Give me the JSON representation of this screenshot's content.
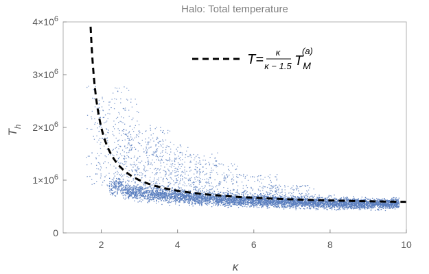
{
  "chart_data": {
    "type": "scatter",
    "title": "Halo: Total temperature",
    "xlabel": "κ",
    "ylabel_main": "T",
    "ylabel_sub": "h",
    "xlim": [
      1,
      10
    ],
    "ylim": [
      0,
      4000000
    ],
    "x_ticks": [
      {
        "value": 2,
        "label": "2"
      },
      {
        "value": 4,
        "label": "4"
      },
      {
        "value": 6,
        "label": "6"
      },
      {
        "value": 8,
        "label": "8"
      },
      {
        "value": 10,
        "label": "10"
      }
    ],
    "y_ticks": [
      {
        "value": 0,
        "label_base": "0",
        "label_exp": ""
      },
      {
        "value": 1000000,
        "label_base": "1×10",
        "label_exp": "6"
      },
      {
        "value": 2000000,
        "label_base": "2×10",
        "label_exp": "6"
      },
      {
        "value": 3000000,
        "label_base": "3×10",
        "label_exp": "6"
      },
      {
        "value": 4000000,
        "label_base": "4×10",
        "label_exp": "6"
      }
    ],
    "scatter_color": "#5b7fbf",
    "curve": {
      "label_lhs": "T=",
      "label_num": "κ",
      "label_den": "κ − 1.5",
      "label_main": "T",
      "label_sub": "M",
      "label_sup": "(a)",
      "style": "dashed",
      "color": "#000000",
      "k0": 1.5,
      "TM": 500000
    },
    "cloud": {
      "x_range": [
        2.2,
        9.8
      ],
      "points": [
        [
          2.5,
          900000
        ],
        [
          2.6,
          800000
        ],
        [
          2.8,
          780000
        ],
        [
          3.0,
          760000
        ],
        [
          3.5,
          720000
        ],
        [
          4.0,
          700000
        ],
        [
          5.0,
          650000
        ],
        [
          6.0,
          620000
        ],
        [
          7.0,
          590000
        ],
        [
          8.0,
          570000
        ],
        [
          9.0,
          560000
        ]
      ],
      "outliers": [
        [
          2.2,
          2700000
        ],
        [
          2.4,
          2500000
        ],
        [
          3.0,
          2000000
        ],
        [
          3.2,
          1900000
        ],
        [
          3.5,
          1700000
        ],
        [
          4.0,
          1600000
        ],
        [
          4.5,
          1500000
        ],
        [
          5.0,
          1300000
        ],
        [
          6.0,
          1100000
        ],
        [
          7.0,
          900000
        ]
      ]
    }
  }
}
